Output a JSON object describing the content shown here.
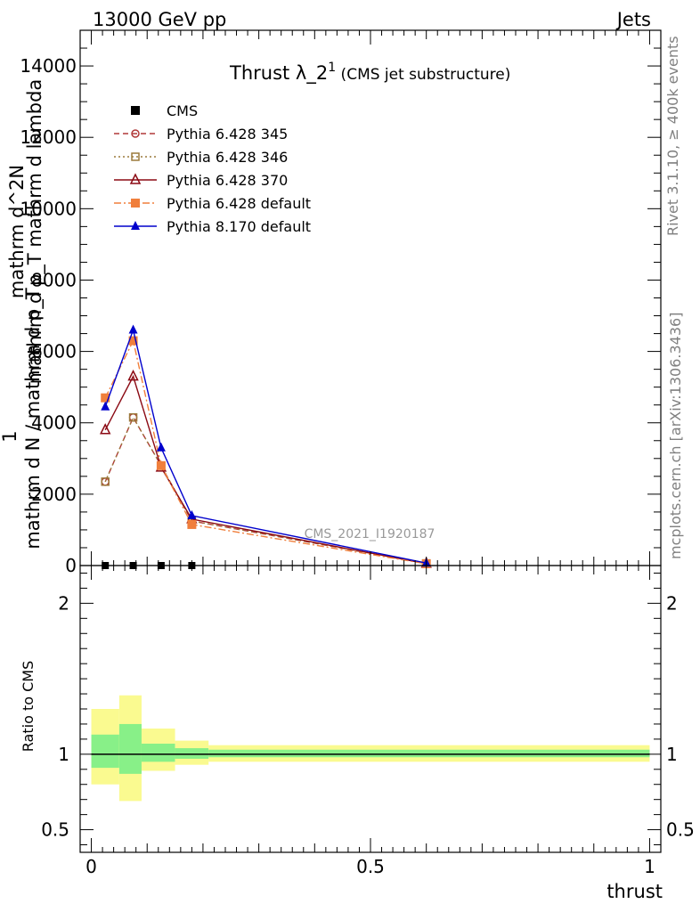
{
  "header": {
    "left": "13000 GeV pp",
    "right": "Jets"
  },
  "side_labels": {
    "rivet": "Rivet 3.1.10, ≥ 400k events",
    "mcplots": "mcplots.cern.ch [arXiv:1306.3436]"
  },
  "watermark": "CMS_2021_I1920187",
  "title": {
    "main": "Thrust λ_2",
    "sup": "1",
    "sub": " (CMS jet substructure)"
  },
  "chart_data": {
    "type": "line",
    "xlabel": "thrust",
    "xlim": [
      -0.02,
      1.02
    ],
    "x_ticks": [
      0,
      0.5,
      1
    ],
    "x_tick_labels": [
      "0",
      "0.5",
      "1"
    ],
    "main_panel": {
      "ylabel_lines": [
        "mathrm d^2N",
        "mathrm d p_T mathrm d lambda",
        "1",
        "mathrm d N / mathrm d p_T"
      ],
      "ylim": [
        0,
        15000
      ],
      "y_ticks": [
        0,
        2000,
        4000,
        6000,
        8000,
        10000,
        12000,
        14000
      ],
      "y_tick_labels": [
        "0",
        "2000",
        "4000",
        "6000",
        "8000",
        "10000",
        "12000",
        "14000"
      ],
      "legend_position": "top-left",
      "series": [
        {
          "name": "CMS",
          "color": "#000000",
          "marker": "square-filled",
          "line": "none",
          "x": [
            0.025,
            0.075,
            0.125,
            0.18
          ],
          "y": [
            0,
            0,
            0,
            0
          ]
        },
        {
          "name": "Pythia 6.428 345",
          "color": "#b03838",
          "marker": "circle-open",
          "line": "dashed",
          "x": [
            0.025,
            0.075,
            0.125,
            0.18,
            0.6
          ],
          "y": [
            2350,
            4150,
            2800,
            1250,
            60
          ]
        },
        {
          "name": "Pythia 6.428 346",
          "color": "#9c7a3c",
          "marker": "square-open",
          "line": "dotted",
          "x": [
            0.025,
            0.075,
            0.125,
            0.18,
            0.6
          ],
          "y": [
            2350,
            4150,
            2800,
            1250,
            60
          ]
        },
        {
          "name": "Pythia 6.428 370",
          "color": "#8b0a14",
          "marker": "triangle-open",
          "line": "solid",
          "x": [
            0.025,
            0.075,
            0.125,
            0.18,
            0.6
          ],
          "y": [
            3800,
            5300,
            2750,
            1300,
            55
          ]
        },
        {
          "name": "Pythia 6.428 default",
          "color": "#f07f3c",
          "marker": "square-filled",
          "line": "dashdot",
          "x": [
            0.025,
            0.075,
            0.125,
            0.18,
            0.6
          ],
          "y": [
            4700,
            6300,
            2800,
            1150,
            50
          ]
        },
        {
          "name": "Pythia 8.170 default",
          "color": "#0000cc",
          "marker": "triangle-filled",
          "line": "solid",
          "x": [
            0.025,
            0.075,
            0.125,
            0.18,
            0.6
          ],
          "y": [
            4450,
            6600,
            3300,
            1400,
            70
          ]
        }
      ]
    },
    "ratio_panel": {
      "ylabel": "Ratio to CMS",
      "ylim": [
        0.35,
        2.25
      ],
      "y_ticks": [
        0.5,
        1,
        2
      ],
      "y_tick_labels": [
        "0.5",
        "1",
        "2"
      ],
      "reference_line": 1,
      "bands": [
        {
          "x_low": 0.0,
          "x_high": 0.05,
          "inner": [
            0.91,
            1.13
          ],
          "outer": [
            0.8,
            1.3
          ]
        },
        {
          "x_low": 0.05,
          "x_high": 0.09,
          "inner": [
            0.87,
            1.2
          ],
          "outer": [
            0.69,
            1.39
          ]
        },
        {
          "x_low": 0.09,
          "x_high": 0.15,
          "inner": [
            0.95,
            1.07
          ],
          "outer": [
            0.89,
            1.17
          ]
        },
        {
          "x_low": 0.15,
          "x_high": 0.21,
          "inner": [
            0.97,
            1.04
          ],
          "outer": [
            0.93,
            1.09
          ]
        },
        {
          "x_low": 0.21,
          "x_high": 1.0,
          "inner": [
            0.98,
            1.03
          ],
          "outer": [
            0.95,
            1.06
          ]
        }
      ],
      "band_colors": {
        "inner": "#88f088",
        "outer": "#fafa90"
      }
    }
  }
}
